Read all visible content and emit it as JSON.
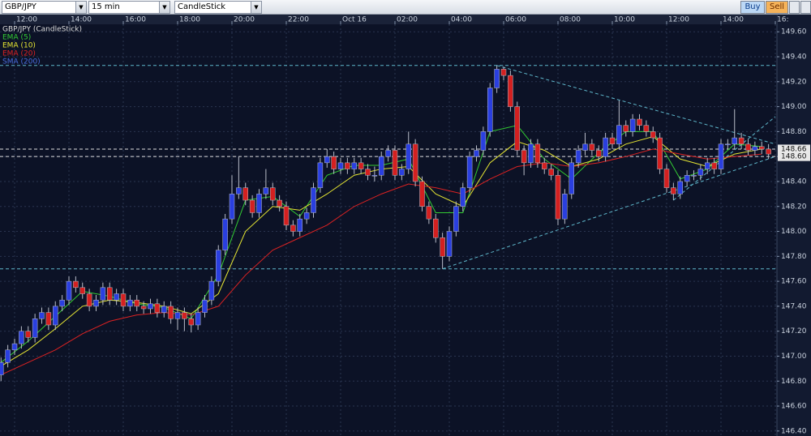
{
  "toolbar": {
    "symbol": "GBP/JPY",
    "interval": "15 min",
    "chart_style": "CandleStick",
    "buy": "Buy",
    "sell": "Sell"
  },
  "chart_data": {
    "type": "candlestick",
    "legend": [
      {
        "name": "GBP/JPY (CandleStick)",
        "color": "#dddddd"
      },
      {
        "name": "EMA (5)",
        "color": "#33cc33"
      },
      {
        "name": "EMA (10)",
        "color": "#e6e633"
      },
      {
        "name": "EMA (20)",
        "color": "#dd2222"
      },
      {
        "name": "SMA (200)",
        "color": "#4a6ee0"
      }
    ],
    "time_labels": [
      "12:00",
      "14:00",
      "16:00",
      "18:00",
      "20:00",
      "22:00",
      "Oct 16",
      "02:00",
      "04:00",
      "06:00",
      "08:00",
      "10:00",
      "12:00",
      "14:00",
      "16:"
    ],
    "up_color": "#2a3fe0",
    "down_color": "#d42020",
    "ohlc": [
      [
        146.85,
        146.99,
        146.8,
        146.95
      ],
      [
        146.95,
        147.09,
        146.91,
        147.05
      ],
      [
        147.05,
        147.14,
        147.01,
        147.1
      ],
      [
        147.1,
        147.24,
        147.06,
        147.2
      ],
      [
        147.2,
        147.24,
        147.11,
        147.15
      ],
      [
        147.15,
        147.34,
        147.11,
        147.3
      ],
      [
        147.3,
        147.39,
        147.26,
        147.35
      ],
      [
        147.35,
        147.39,
        147.21,
        147.25
      ],
      [
        147.25,
        147.44,
        147.21,
        147.4
      ],
      [
        147.4,
        147.49,
        147.36,
        147.45
      ],
      [
        147.45,
        147.64,
        147.41,
        147.6
      ],
      [
        147.6,
        147.64,
        147.51,
        147.55
      ],
      [
        147.55,
        147.59,
        147.46,
        147.5
      ],
      [
        147.5,
        147.54,
        147.36,
        147.4
      ],
      [
        147.4,
        147.49,
        147.36,
        147.45
      ],
      [
        147.45,
        147.59,
        147.41,
        147.55
      ],
      [
        147.55,
        147.59,
        147.41,
        147.45
      ],
      [
        147.45,
        147.54,
        147.41,
        147.5
      ],
      [
        147.5,
        147.54,
        147.36,
        147.4
      ],
      [
        147.4,
        147.49,
        147.36,
        147.45
      ],
      [
        147.45,
        147.49,
        147.36,
        147.4
      ],
      [
        147.4,
        147.44,
        147.34,
        147.38
      ],
      [
        147.38,
        147.46,
        147.34,
        147.42
      ],
      [
        147.42,
        147.46,
        147.31,
        147.35
      ],
      [
        147.35,
        147.44,
        147.31,
        147.4
      ],
      [
        147.4,
        147.44,
        147.26,
        147.3
      ],
      [
        147.3,
        147.39,
        147.21,
        147.35
      ],
      [
        147.35,
        147.39,
        147.2,
        147.3
      ],
      [
        147.3,
        147.34,
        147.19,
        147.25
      ],
      [
        147.25,
        147.39,
        147.21,
        147.35
      ],
      [
        147.35,
        147.49,
        147.31,
        147.45
      ],
      [
        147.45,
        147.64,
        147.41,
        147.6
      ],
      [
        147.6,
        147.89,
        147.56,
        147.85
      ],
      [
        147.85,
        148.14,
        147.81,
        148.1
      ],
      [
        148.1,
        148.45,
        148.06,
        148.3
      ],
      [
        148.3,
        148.6,
        148.26,
        148.35
      ],
      [
        148.35,
        148.39,
        148.21,
        148.25
      ],
      [
        148.25,
        148.29,
        148.11,
        148.15
      ],
      [
        148.15,
        148.34,
        148.11,
        148.3
      ],
      [
        148.3,
        148.5,
        148.26,
        148.35
      ],
      [
        148.35,
        148.39,
        148.21,
        148.25
      ],
      [
        148.25,
        148.29,
        148.16,
        148.2
      ],
      [
        148.2,
        148.24,
        148.01,
        148.05
      ],
      [
        148.05,
        148.09,
        147.96,
        148.0
      ],
      [
        148.0,
        148.14,
        147.96,
        148.1
      ],
      [
        148.1,
        148.19,
        148.06,
        148.15
      ],
      [
        148.15,
        148.39,
        148.11,
        148.35
      ],
      [
        148.35,
        148.59,
        148.31,
        148.55
      ],
      [
        148.55,
        148.66,
        148.51,
        148.6
      ],
      [
        148.6,
        148.64,
        148.46,
        148.5
      ],
      [
        148.5,
        148.59,
        148.46,
        148.55
      ],
      [
        148.55,
        148.59,
        148.46,
        148.5
      ],
      [
        148.5,
        148.59,
        148.46,
        148.55
      ],
      [
        148.55,
        148.59,
        148.46,
        148.5
      ],
      [
        148.5,
        148.54,
        148.41,
        148.45
      ],
      [
        148.45,
        148.52,
        148.4,
        148.45
      ],
      [
        148.45,
        148.64,
        148.41,
        148.6
      ],
      [
        148.6,
        148.69,
        148.56,
        148.65
      ],
      [
        148.65,
        148.69,
        148.41,
        148.45
      ],
      [
        148.45,
        148.54,
        148.41,
        148.5
      ],
      [
        148.5,
        148.8,
        148.46,
        148.7
      ],
      [
        148.7,
        148.74,
        148.36,
        148.4
      ],
      [
        148.4,
        148.44,
        148.16,
        148.2
      ],
      [
        148.2,
        148.24,
        148.06,
        148.1
      ],
      [
        148.1,
        148.14,
        147.91,
        147.95
      ],
      [
        147.95,
        147.99,
        147.7,
        147.8
      ],
      [
        147.8,
        148.04,
        147.76,
        148.0
      ],
      [
        148.0,
        148.24,
        147.96,
        148.2
      ],
      [
        148.2,
        148.39,
        148.16,
        148.35
      ],
      [
        148.35,
        148.64,
        148.31,
        148.6
      ],
      [
        148.6,
        148.69,
        148.56,
        148.65
      ],
      [
        148.65,
        148.84,
        148.61,
        148.8
      ],
      [
        148.8,
        149.19,
        148.76,
        149.15
      ],
      [
        149.15,
        149.33,
        149.11,
        149.3
      ],
      [
        149.3,
        149.32,
        149.21,
        149.25
      ],
      [
        149.25,
        149.29,
        148.96,
        149.0
      ],
      [
        149.0,
        149.04,
        148.61,
        148.65
      ],
      [
        148.65,
        148.69,
        148.45,
        148.55
      ],
      [
        148.55,
        148.74,
        148.51,
        148.7
      ],
      [
        148.7,
        148.74,
        148.51,
        148.55
      ],
      [
        148.55,
        148.59,
        148.46,
        148.5
      ],
      [
        148.5,
        148.54,
        148.41,
        148.45
      ],
      [
        148.45,
        148.49,
        148.05,
        148.1
      ],
      [
        148.1,
        148.34,
        148.06,
        148.3
      ],
      [
        148.3,
        148.59,
        148.26,
        148.55
      ],
      [
        148.55,
        148.69,
        148.51,
        148.65
      ],
      [
        148.65,
        148.79,
        148.61,
        148.7
      ],
      [
        148.7,
        148.74,
        148.61,
        148.65
      ],
      [
        148.65,
        148.69,
        148.56,
        148.6
      ],
      [
        148.6,
        148.79,
        148.56,
        148.75
      ],
      [
        148.75,
        148.79,
        148.66,
        148.7
      ],
      [
        148.7,
        149.05,
        148.66,
        148.85
      ],
      [
        148.85,
        148.89,
        148.76,
        148.8
      ],
      [
        148.8,
        148.94,
        148.76,
        148.9
      ],
      [
        148.9,
        148.94,
        148.81,
        148.85
      ],
      [
        148.85,
        148.89,
        148.76,
        148.8
      ],
      [
        148.8,
        148.84,
        148.71,
        148.75
      ],
      [
        148.75,
        148.79,
        148.46,
        148.5
      ],
      [
        148.5,
        148.54,
        148.31,
        148.35
      ],
      [
        148.35,
        148.39,
        148.25,
        148.3
      ],
      [
        148.3,
        148.44,
        148.26,
        148.4
      ],
      [
        148.4,
        148.49,
        148.36,
        148.45
      ],
      [
        148.45,
        148.49,
        148.41,
        148.45
      ],
      [
        148.45,
        148.54,
        148.41,
        148.5
      ],
      [
        148.5,
        148.59,
        148.46,
        148.55
      ],
      [
        148.55,
        148.59,
        148.46,
        148.5
      ],
      [
        148.5,
        148.74,
        148.46,
        148.7
      ],
      [
        148.7,
        148.74,
        148.66,
        148.7
      ],
      [
        148.7,
        148.98,
        148.66,
        148.75
      ],
      [
        148.75,
        148.79,
        148.66,
        148.7
      ],
      [
        148.7,
        148.74,
        148.61,
        148.65
      ],
      [
        148.65,
        148.72,
        148.61,
        148.68
      ],
      [
        148.68,
        148.72,
        148.62,
        148.66
      ],
      [
        148.66,
        148.7,
        148.58,
        148.62
      ]
    ],
    "indicator_x": [
      0,
      4,
      8,
      12,
      16,
      20,
      24,
      28,
      32,
      36,
      40,
      44,
      48,
      52,
      56,
      60,
      64,
      68,
      72,
      76,
      80,
      84,
      88,
      92,
      96,
      100,
      104,
      108,
      112
    ],
    "series": [
      {
        "name": "EMA (5)",
        "color": "#33cc33",
        "values": [
          146.95,
          147.12,
          147.32,
          147.52,
          147.48,
          147.42,
          147.39,
          147.3,
          147.65,
          148.25,
          148.28,
          148.12,
          148.45,
          148.53,
          148.53,
          148.58,
          148.15,
          148.15,
          148.8,
          148.85,
          148.58,
          148.42,
          148.63,
          148.8,
          148.8,
          148.42,
          148.5,
          148.7,
          148.68
        ]
      },
      {
        "name": "EMA (10)",
        "color": "#e6e633",
        "values": [
          146.92,
          147.05,
          147.22,
          147.4,
          147.45,
          147.43,
          147.4,
          147.34,
          147.5,
          148.0,
          148.2,
          148.17,
          148.3,
          148.45,
          148.5,
          148.52,
          148.3,
          148.2,
          148.55,
          148.72,
          148.65,
          148.52,
          148.58,
          148.7,
          148.76,
          148.58,
          148.52,
          148.62,
          148.66
        ]
      },
      {
        "name": "EMA (20)",
        "color": "#dd2222",
        "values": [
          146.85,
          146.95,
          147.05,
          147.18,
          147.28,
          147.33,
          147.35,
          147.33,
          147.4,
          147.65,
          147.85,
          147.95,
          148.05,
          148.2,
          148.3,
          148.38,
          148.35,
          148.3,
          148.42,
          148.52,
          148.55,
          148.52,
          148.55,
          148.6,
          148.66,
          148.62,
          148.58,
          148.6,
          148.62
        ]
      }
    ],
    "hlines": [
      {
        "value": 149.33,
        "color": "#5fb8cc"
      },
      {
        "value": 147.7,
        "color": "#5fb8cc"
      },
      {
        "value": 148.66,
        "color": "#e0e0e0"
      },
      {
        "value": 148.6,
        "color": "#e0e0e0"
      }
    ],
    "trendlines": [
      {
        "from": [
          73,
          149.33
        ],
        "to": [
          114,
          148.7
        ]
      },
      {
        "from": [
          65,
          147.7
        ],
        "to": [
          114,
          148.6
        ]
      },
      {
        "from": [
          99,
          148.25
        ],
        "to": [
          114,
          148.92
        ]
      }
    ],
    "price_markers": [
      {
        "value": 148.66,
        "label": "148.66"
      },
      {
        "value": 148.6,
        "label": "148.60"
      }
    ],
    "ylim": [
      146.36,
      149.66
    ],
    "yticks": [
      {
        "value": 146.4,
        "label": "146.40"
      },
      {
        "value": 146.6,
        "label": "146.60"
      },
      {
        "value": 146.8,
        "label": "146.80"
      },
      {
        "value": 147.0,
        "label": "147.00"
      },
      {
        "value": 147.2,
        "label": "147.20"
      },
      {
        "value": 147.4,
        "label": "147.40"
      },
      {
        "value": 147.6,
        "label": "147.60"
      },
      {
        "value": 147.8,
        "label": "147.80"
      },
      {
        "value": 148.0,
        "label": "148.00"
      },
      {
        "value": 148.2,
        "label": "148.20"
      },
      {
        "value": 148.4,
        "label": "148.40"
      },
      {
        "value": 148.6,
        "label": "148.60"
      },
      {
        "value": 148.8,
        "label": "148.80"
      },
      {
        "value": 149.0,
        "label": "149.00"
      },
      {
        "value": 149.2,
        "label": "149.20"
      },
      {
        "value": 149.4,
        "label": "149.40"
      },
      {
        "value": 149.6,
        "label": "149.60"
      }
    ],
    "grid": true
  }
}
